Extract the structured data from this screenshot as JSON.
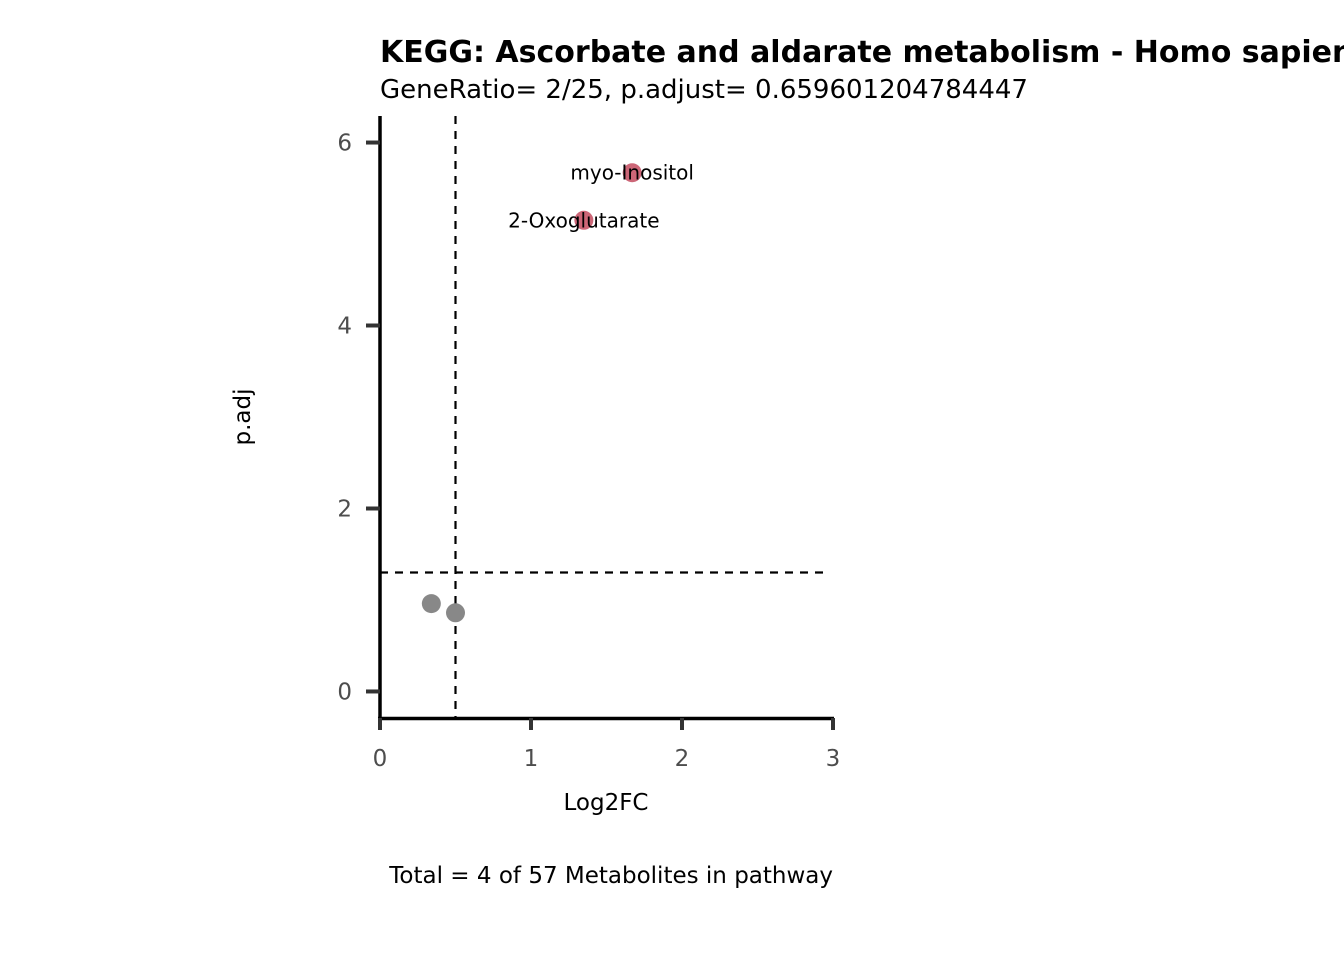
{
  "chart_data": {
    "type": "scatter",
    "title": "KEGG: Ascorbate and aldarate metabolism - Homo sapiens (human)",
    "subtitle": "GeneRatio= 2/25, p.adjust= 0.659601204784447",
    "xlabel": "Log2FC",
    "ylabel": "p.adj",
    "caption": "Total = 4 of 57 Metabolites in pathway",
    "xlim": [
      0,
      3
    ],
    "ylim": [
      -0.29,
      6.29
    ],
    "xticks": [
      0,
      1,
      2,
      3
    ],
    "yticks": [
      0,
      2,
      4,
      6
    ],
    "xtick_labels": [
      "0",
      "1",
      "2",
      "3"
    ],
    "ytick_labels": [
      "0",
      "2",
      "4",
      "6"
    ],
    "grid": false,
    "legend": "none",
    "thresholds": {
      "log2fc": 0.5,
      "p_adj": 1.3
    },
    "points": [
      {
        "x": 1.67,
        "y": 5.67,
        "label": "myo-Inositol",
        "status": "significant"
      },
      {
        "x": 1.35,
        "y": 5.15,
        "label": "2-Oxoglutarate",
        "status": "significant"
      },
      {
        "x": 0.34,
        "y": 0.96,
        "label": "",
        "status": "not-significant"
      },
      {
        "x": 0.5,
        "y": 0.86,
        "label": "",
        "status": "not-significant"
      }
    ],
    "colors": {
      "significant": "#cc6677",
      "not-significant": "#888888",
      "axis": "#000000",
      "tick": "#333333",
      "threshold": "#000000"
    }
  }
}
